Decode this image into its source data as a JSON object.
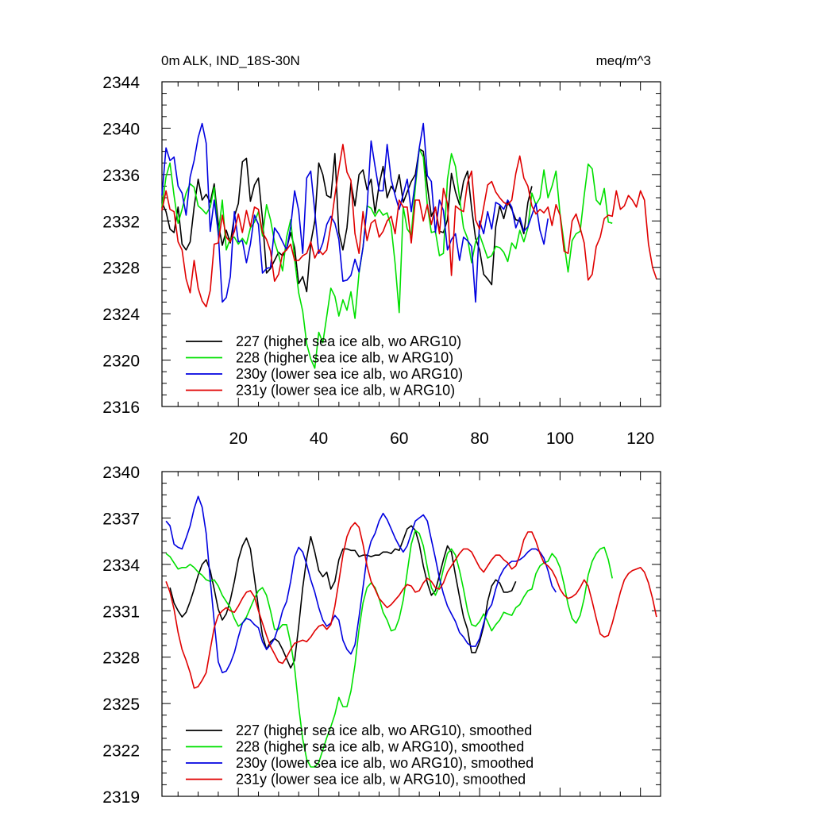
{
  "chart_data": [
    {
      "type": "line",
      "title": "0m ALK, IND_18S-30N",
      "units_label": "meq/m^3",
      "xlabel": "",
      "ylabel": "",
      "xlim": [
        1,
        125
      ],
      "ylim": [
        2316,
        2344
      ],
      "x_ticks": [
        20,
        40,
        60,
        80,
        100,
        120
      ],
      "y_ticks": [
        2316,
        2320,
        2324,
        2328,
        2332,
        2336,
        2340,
        2344
      ],
      "grid": false,
      "legend_position": "bottom-left",
      "series": [
        {
          "name": "227 (higher sea ice alb, wo ARG10)",
          "color": "#000000",
          "x_start": 1,
          "values": [
            2333.6,
            2332.8,
            2331.3,
            2331.0,
            2333.2,
            2330.0,
            2329.5,
            2330.2,
            2333.2,
            2335.6,
            2333.8,
            2334.3,
            2333.6,
            2335.2,
            2331.8,
            2329.9,
            2331.2,
            2330.1,
            2332.4,
            2333.5,
            2337.1,
            2337.4,
            2333.7,
            2335.1,
            2335.7,
            2332.2,
            2327.5,
            2327.9,
            2328.6,
            2329.3,
            2329.0,
            2329.6,
            2331.0,
            2329.7,
            2326.6,
            2327.2,
            2325.9,
            2330.1,
            2332.0,
            2337.0,
            2336.0,
            2334.2,
            2334.0,
            2337.8,
            2331.0,
            2329.5,
            2331.4,
            2335.3,
            2333.3,
            2336.0,
            2336.4,
            2334.7,
            2335.6,
            2332.7,
            2335.1,
            2336.7,
            2334.0,
            2335.0,
            2334.5,
            2336.0,
            2333.6,
            2334.5,
            2335.4,
            2336.0,
            2338.2,
            2338.0,
            2335.0,
            2332.4,
            2333.2,
            2331.1,
            2331.0,
            2332.1,
            2336.1,
            2334.5,
            2333.4,
            2335.4,
            2336.3,
            2333.1,
            2330.5,
            2329.5,
            2327.4,
            2327.0,
            2326.5,
            2331.5,
            2333.3,
            2332.2,
            2333.6,
            2333.0,
            2332.1,
            2332.0,
            2330.9,
            2333.6,
            2335.0
          ]
        },
        {
          "name": "228 (higher sea ice alb, w ARG10)",
          "color": "#00e000",
          "x_start": 1,
          "values": [
            2333.2,
            2335.8,
            2337.0,
            2334.2,
            2331.8,
            2333.0,
            2334.4,
            2335.2,
            2334.9,
            2333.3,
            2333.0,
            2332.6,
            2333.2,
            2334.9,
            2330.8,
            2333.8,
            2329.5,
            2330.5,
            2330.6,
            2330.0,
            2330.5,
            2330.0,
            2331.4,
            2331.9,
            2332.8,
            2330.7,
            2333.4,
            2332.1,
            2330.2,
            2329.1,
            2327.7,
            2330.6,
            2332.1,
            2328.7,
            2325.8,
            2324.2,
            2321.4,
            2320.1,
            2319.3,
            2322.4,
            2321.5,
            2323.8,
            2326.2,
            2325.5,
            2323.8,
            2325.2,
            2324.3,
            2325.9,
            2323.6,
            2327.5,
            2329.7,
            2333.3,
            2333.1,
            2332.4,
            2333.0,
            2332.5,
            2332.7,
            2331.5,
            2328.3,
            2324.1,
            2333.2,
            2331.3,
            2330.8,
            2334.9,
            2338.2,
            2337.5,
            2333.3,
            2331.0,
            2331.1,
            2329.0,
            2329.2,
            2335.6,
            2337.8,
            2336.7,
            2334.0,
            2331.4,
            2330.5,
            2328.4,
            2330.2,
            2330.8,
            2329.8,
            2328.8,
            2329.0,
            2329.8,
            2329.7,
            2329.3,
            2328.5,
            2330.1,
            2329.6,
            2331.2,
            2330.2,
            2331.4,
            2334.4,
            2333.4,
            2334.0,
            2336.4,
            2334.0,
            2335.0,
            2336.3,
            2332.6,
            2330.1,
            2327.6,
            2330.3,
            2330.9,
            2331.1,
            2334.2,
            2336.9,
            2336.5,
            2333.8,
            2333.4,
            2334.8,
            2331.9,
            2331.8
          ]
        },
        {
          "name": "230y (lower sea ice alb, wo ARG10)",
          "color": "#0000e0",
          "x_start": 1,
          "values": [
            2334.2,
            2338.3,
            2337.2,
            2337.5,
            2335.0,
            2334.4,
            2332.5,
            2335.8,
            2337.2,
            2339.2,
            2340.4,
            2338.7,
            2331.1,
            2333.8,
            2331.0,
            2325.0,
            2325.4,
            2327.2,
            2332.8,
            2330.2,
            2330.3,
            2328.4,
            2330.0,
            2332.5,
            2331.7,
            2327.5,
            2327.9,
            2328.0,
            2331.4,
            2330.9,
            2330.2,
            2329.5,
            2331.5,
            2334.6,
            2332.9,
            2329.2,
            2335.7,
            2336.3,
            2332.8,
            2329.2,
            2330.1,
            2331.7,
            2332.4,
            2331.8,
            2330.4,
            2326.8,
            2326.9,
            2327.3,
            2328.7,
            2327.6,
            2329.7,
            2333.1,
            2338.9,
            2336.7,
            2334.6,
            2334.6,
            2338.6,
            2335.6,
            2334.2,
            2333.0,
            2334.3,
            2335.6,
            2332.8,
            2335.4,
            2338.3,
            2340.4,
            2335.9,
            2335.4,
            2331.0,
            2333.8,
            2332.9,
            2329.5,
            2330.4,
            2330.9,
            2328.6,
            2330.6,
            2330.3,
            2329.8,
            2325.0,
            2332.0,
            2330.9,
            2332.8,
            2331.3,
            2333.6,
            2333.4,
            2333.0,
            2333.8,
            2333.2,
            2331.4,
            2332.3,
            2331.1,
            2331.5,
            2332.5,
            2333.5,
            2331.2,
            2330.0,
            2332.2
          ]
        },
        {
          "name": "231y (lower sea ice alb, w ARG10)",
          "color": "#e00000",
          "x_start": 1,
          "values": [
            2332.9,
            2334.6,
            2333.0,
            2332.8,
            2330.2,
            2329.5,
            2327.0,
            2325.8,
            2328.6,
            2326.2,
            2325.1,
            2324.6,
            2326.0,
            2330.0,
            2330.1,
            2332.5,
            2330.6,
            2330.2,
            2331.1,
            2332.6,
            2331.0,
            2332.9,
            2331.5,
            2333.2,
            2333.0,
            2331.0,
            2330.4,
            2329.4,
            2326.8,
            2327.4,
            2329.2,
            2329.5,
            2330.0,
            2328.6,
            2328.6,
            2329.0,
            2329.2,
            2330.2,
            2328.8,
            2329.5,
            2329.1,
            2329.5,
            2331.6,
            2334.2,
            2336.5,
            2338.6,
            2336.2,
            2335.5,
            2330.9,
            2329.2,
            2332.8,
            2330.3,
            2331.8,
            2332.1,
            2330.6,
            2331.1,
            2332.0,
            2332.4,
            2330.9,
            2333.8,
            2333.2,
            2333.2,
            2330.1,
            2333.8,
            2333.8,
            2332.0,
            2333.4,
            2331.7,
            2333.2,
            2330.9,
            2334.8,
            2333.5,
            2327.3,
            2333.3,
            2333.0,
            2332.8,
            2335.3,
            2336.3,
            2332.1,
            2331.3,
            2333.2,
            2335.1,
            2335.4,
            2334.5,
            2334.0,
            2333.6,
            2333.4,
            2333.8,
            2336.1,
            2337.6,
            2335.7,
            2335.0,
            2333.3,
            2332.6,
            2333.0,
            2332.7,
            2333.2,
            2331.6,
            2333.4,
            2332.5,
            2329.4,
            2329.2,
            2332.0,
            2332.6,
            2331.4,
            2330.1,
            2326.9,
            2327.4,
            2329.8,
            2330.6,
            2332.2,
            2332.5,
            2332.4,
            2334.6,
            2333.0,
            2333.3,
            2334.2,
            2333.8,
            2333.2,
            2334.6,
            2333.8,
            2330.0,
            2328.0,
            2327.0
          ]
        }
      ]
    },
    {
      "type": "line",
      "title": "",
      "xlabel": "",
      "ylabel": "",
      "xlim": [
        1,
        125
      ],
      "ylim": [
        2319,
        2340
      ],
      "x_ticks": [
        20,
        40,
        60,
        80,
        100,
        120
      ],
      "y_ticks": [
        2319,
        2322,
        2325,
        2328,
        2331,
        2334,
        2337,
        2340
      ],
      "grid": false,
      "legend_position": "bottom-left",
      "series": [
        {
          "name": "227 (higher sea ice alb, wo ARG10), smoothed",
          "color": "#000000",
          "x_start": 3,
          "values": [
            2332.5,
            2331.5,
            2331.0,
            2330.6,
            2330.9,
            2331.6,
            2332.4,
            2333.3,
            2334.0,
            2334.3,
            2333.6,
            2332.4,
            2331.1,
            2330.4,
            2330.8,
            2331.7,
            2332.9,
            2334.3,
            2335.2,
            2335.7,
            2335.0,
            2333.1,
            2331.2,
            2329.4,
            2328.5,
            2329.0,
            2329.2,
            2329.0,
            2328.5,
            2327.9,
            2327.3,
            2327.8,
            2330.0,
            2332.5,
            2334.4,
            2335.8,
            2334.8,
            2333.6,
            2333.2,
            2333.5,
            2332.4,
            2332.9,
            2334.3,
            2335.0,
            2335.0,
            2334.9,
            2334.9,
            2334.5,
            2334.6,
            2334.6,
            2334.5,
            2334.6,
            2334.6,
            2334.8,
            2334.8,
            2334.7,
            2335.0,
            2334.9,
            2335.6,
            2336.3,
            2336.5,
            2336.2,
            2335.3,
            2333.9,
            2332.8,
            2332.0,
            2332.3,
            2333.3,
            2334.3,
            2335.2,
            2334.8,
            2333.3,
            2331.9,
            2330.6,
            2329.8,
            2328.3,
            2328.3,
            2329.0,
            2330.0,
            2331.6,
            2332.6,
            2333.0,
            2332.8,
            2332.2,
            2332.2,
            2332.3,
            2332.9
          ]
        },
        {
          "name": "228 (higher sea ice alb, w ARG10), smoothed",
          "color": "#00e000",
          "x_start": 2,
          "values": [
            2334.7,
            2334.5,
            2334.1,
            2333.7,
            2333.8,
            2333.8,
            2334.0,
            2333.8,
            2333.5,
            2333.3,
            2333.0,
            2332.9,
            2333.0,
            2332.6,
            2332.0,
            2331.6,
            2331.2,
            2330.5,
            2330.0,
            2330.2,
            2330.6,
            2331.2,
            2331.8,
            2332.3,
            2332.5,
            2332.0,
            2331.0,
            2329.8,
            2329.8,
            2330.1,
            2330.1,
            2328.9,
            2327.3,
            2324.8,
            2322.7,
            2321.4,
            2320.9,
            2320.9,
            2321.2,
            2322.0,
            2322.8,
            2323.5,
            2324.3,
            2325.4,
            2324.8,
            2324.8,
            2325.8,
            2327.5,
            2329.8,
            2331.5,
            2332.5,
            2332.8,
            2332.5,
            2331.8,
            2330.9,
            2330.4,
            2329.7,
            2329.8,
            2330.5,
            2331.7,
            2333.5,
            2335.3,
            2336.2,
            2336.0,
            2335.2,
            2333.8,
            2332.5,
            2332.0,
            2332.6,
            2333.7,
            2334.7,
            2335.0,
            2334.6,
            2333.6,
            2332.4,
            2331.0,
            2330.1,
            2330.0,
            2330.3,
            2330.8,
            2330.3,
            2329.7,
            2330.1,
            2330.4,
            2330.9,
            2330.8,
            2330.7,
            2331.2,
            2331.4,
            2331.9,
            2332.3,
            2332.4,
            2333.4,
            2333.9,
            2334.1,
            2334.2,
            2334.7,
            2334.4,
            2333.8,
            2332.7,
            2331.4,
            2330.5,
            2330.2,
            2330.7,
            2331.8,
            2333.3,
            2334.2,
            2334.7,
            2335.0,
            2335.1,
            2334.3,
            2333.1
          ]
        },
        {
          "name": "230y (lower sea ice alb, wo ARG10), smoothed",
          "color": "#0000e0",
          "x_start": 2,
          "values": [
            2336.8,
            2336.5,
            2335.3,
            2335.1,
            2335.0,
            2335.7,
            2336.5,
            2337.6,
            2338.4,
            2337.7,
            2336.0,
            2333.0,
            2330.3,
            2327.7,
            2327.0,
            2327.1,
            2327.6,
            2328.3,
            2329.3,
            2330.2,
            2330.5,
            2330.4,
            2330.1,
            2329.9,
            2329.0,
            2328.5,
            2328.8,
            2329.2,
            2330.0,
            2331.0,
            2331.6,
            2332.9,
            2334.5,
            2335.1,
            2334.8,
            2334.0,
            2333.0,
            2332.2,
            2331.2,
            2330.4,
            2330.0,
            2330.2,
            2330.7,
            2330.4,
            2329.1,
            2328.5,
            2328.2,
            2328.8,
            2330.6,
            2332.5,
            2334.5,
            2335.5,
            2336.0,
            2336.8,
            2337.3,
            2336.9,
            2336.3,
            2335.7,
            2335.2,
            2334.8,
            2335.2,
            2336.0,
            2336.8,
            2337.0,
            2337.2,
            2336.8,
            2335.6,
            2334.4,
            2333.1,
            2332.1,
            2331.3,
            2330.8,
            2330.3,
            2329.6,
            2329.3,
            2328.9,
            2328.7,
            2328.7,
            2329.2,
            2330.2,
            2331.0,
            2331.4,
            2332.4,
            2333.2,
            2333.7,
            2334.0,
            2334.2,
            2334.2,
            2334.3,
            2334.5,
            2334.8,
            2335.0,
            2335.0,
            2334.8,
            2334.4,
            2333.6,
            2332.6,
            2332.2
          ]
        },
        {
          "name": "231y (lower sea ice alb, w ARG10), smoothed",
          "color": "#e00000",
          "x_start": 2,
          "values": [
            2332.9,
            2332.2,
            2331.1,
            2329.6,
            2328.5,
            2327.8,
            2327.0,
            2326.0,
            2326.1,
            2326.5,
            2327.0,
            2328.5,
            2329.9,
            2330.7,
            2331.0,
            2331.2,
            2331.0,
            2330.9,
            2331.3,
            2331.8,
            2332.2,
            2332.3,
            2331.9,
            2331.0,
            2330.2,
            2329.4,
            2328.7,
            2328.2,
            2327.7,
            2327.6,
            2328.0,
            2328.5,
            2328.9,
            2329.0,
            2329.1,
            2329.0,
            2329.3,
            2329.7,
            2330.0,
            2330.1,
            2329.8,
            2330.1,
            2331.3,
            2332.9,
            2334.6,
            2335.8,
            2336.4,
            2336.7,
            2336.4,
            2335.3,
            2333.9,
            2332.9,
            2332.4,
            2331.8,
            2331.5,
            2331.2,
            2331.4,
            2331.7,
            2332.0,
            2332.4,
            2332.7,
            2332.6,
            2332.2,
            2332.3,
            2332.8,
            2333.1,
            2332.9,
            2332.5,
            2332.4,
            2332.8,
            2333.5,
            2333.9,
            2334.3,
            2334.7,
            2335.0,
            2335.0,
            2334.8,
            2334.3,
            2333.8,
            2333.5,
            2333.9,
            2334.3,
            2334.6,
            2334.6,
            2334.3,
            2334.1,
            2333.7,
            2333.9,
            2334.6,
            2335.6,
            2336.1,
            2336.1,
            2335.5,
            2334.7,
            2334.1,
            2333.9,
            2333.6,
            2333.1,
            2332.4,
            2332.0,
            2331.8,
            2331.9,
            2332.1,
            2332.5,
            2333.0,
            2332.6,
            2331.6,
            2330.5,
            2329.5,
            2329.3,
            2329.4,
            2330.2,
            2331.2,
            2332.2,
            2333.0,
            2333.4,
            2333.6,
            2333.7,
            2333.8,
            2333.5,
            2332.8,
            2331.8,
            2330.6
          ]
        }
      ]
    }
  ]
}
